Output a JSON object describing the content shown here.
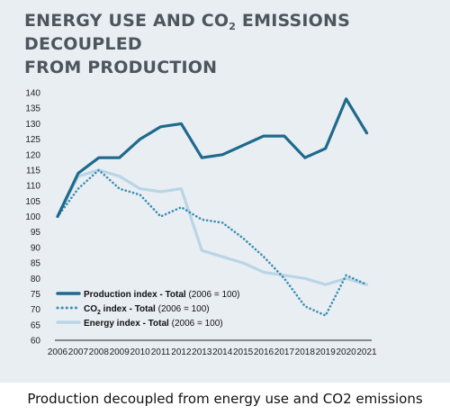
{
  "title": {
    "line1_part1": "ENERGY USE AND CO",
    "line1_sub": "2",
    "line1_part2": " EMISSIONS DECOUPLED",
    "line2": "FROM PRODUCTION"
  },
  "caption": "Production decoupled from energy use and CO2 emissions",
  "colors": {
    "background": "#e9eef3",
    "production": "#1e6a8c",
    "co2": "#3a8eb3",
    "energy": "#b9d5e6"
  },
  "chart_data": {
    "type": "line",
    "x": [
      "2006",
      "2007",
      "2008",
      "2009",
      "2010",
      "2011",
      "2012",
      "2013",
      "2014",
      "2015",
      "2016",
      "2017",
      "2018",
      "2019",
      "2020",
      "2021"
    ],
    "ylim": [
      60,
      140
    ],
    "yticks": [
      "60",
      "65",
      "70",
      "75",
      "80",
      "85",
      "90",
      "95",
      "100",
      "105",
      "110",
      "115",
      "120",
      "125",
      "130",
      "135",
      "140"
    ],
    "grid": false,
    "legend_position": "bottom-left",
    "series": [
      {
        "key": "production",
        "name_bold": "Production index - Total",
        "name_rest": " (2006 = 100)",
        "style": "solid-thick",
        "values": [
          100,
          114,
          119,
          119,
          125,
          129,
          130,
          119,
          120,
          123,
          126,
          126,
          119,
          122,
          138,
          127
        ]
      },
      {
        "key": "co2",
        "name_bold_part1": "CO",
        "name_bold_sub": "2",
        "name_bold_part2": " index - Total",
        "name_rest": " (2006 = 100)",
        "style": "dotted",
        "values": [
          100,
          109,
          115,
          109,
          107,
          100,
          103,
          99,
          98,
          93,
          87,
          80,
          71,
          68,
          81,
          78
        ]
      },
      {
        "key": "energy",
        "name_bold": "Energy index - Total",
        "name_rest": " (2006 = 100)",
        "style": "solid",
        "values": [
          100,
          113,
          115,
          113,
          109,
          108,
          109,
          89,
          87,
          85,
          82,
          81,
          80,
          78,
          80,
          78
        ]
      }
    ]
  }
}
